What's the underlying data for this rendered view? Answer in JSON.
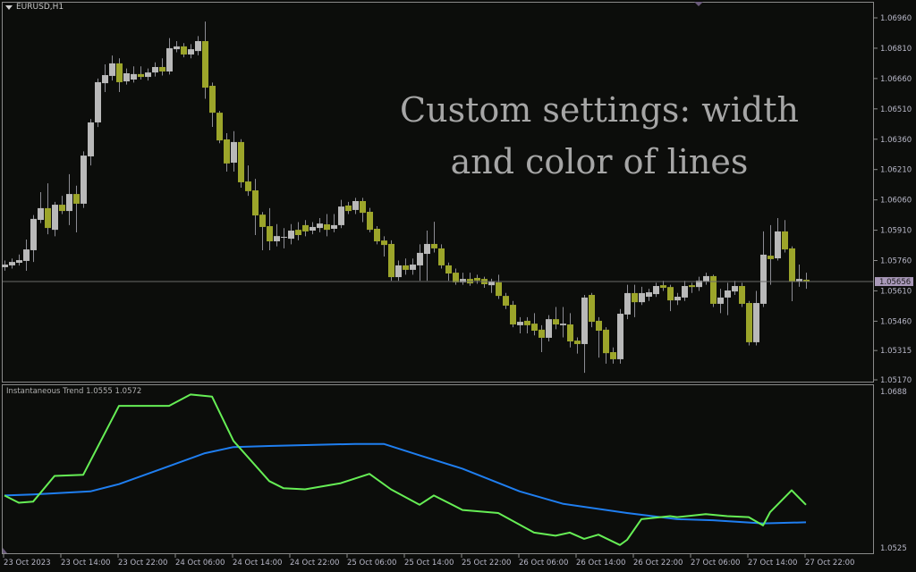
{
  "window": {
    "title": "EURUSD,H1"
  },
  "overlay_text": [
    "Custom settings: width",
    "and color of lines"
  ],
  "colors": {
    "background": "#0c0d0b",
    "bull_candle": "#b9b9b9",
    "bear_candle": "#9ca52a",
    "wick": "#8c8c94",
    "grid_border": "#8a8a8a",
    "green_line": "#66ee55",
    "blue_line": "#1f7ef0",
    "price_tag": "#a898b8"
  },
  "chart_data": [
    {
      "type": "candlestick",
      "symbol": "EURUSD",
      "timeframe": "H1",
      "first_bar": "23 Oct 2023 06:00",
      "columns": [
        "open",
        "high",
        "low",
        "close"
      ],
      "ohlc": [
        [
          1.05727,
          1.0576,
          1.0571,
          1.0574
        ],
        [
          1.05736,
          1.0577,
          1.0572,
          1.05753
        ],
        [
          1.05749,
          1.0579,
          1.05735,
          1.05762
        ],
        [
          1.05758,
          1.05864,
          1.05709,
          1.05815
        ],
        [
          1.05811,
          1.05985,
          1.05753,
          1.05966
        ],
        [
          1.05961,
          1.06098,
          1.05945,
          1.06019
        ],
        [
          1.06019,
          1.06142,
          1.0589,
          1.05921
        ],
        [
          1.05912,
          1.0605,
          1.0588,
          1.06036
        ],
        [
          1.06036,
          1.0608,
          1.0599,
          1.06005
        ],
        [
          1.06005,
          1.06187,
          1.05935,
          1.06089
        ],
        [
          1.06089,
          1.0613,
          1.05899,
          1.06041
        ],
        [
          1.06041,
          1.063,
          1.0602,
          1.06279
        ],
        [
          1.06275,
          1.0646,
          1.0623,
          1.06443
        ],
        [
          1.06443,
          1.0666,
          1.0642,
          1.06642
        ],
        [
          1.06637,
          1.0673,
          1.06593,
          1.06677
        ],
        [
          1.06673,
          1.06774,
          1.0665,
          1.06735
        ],
        [
          1.06735,
          1.0676,
          1.06593,
          1.06642
        ],
        [
          1.06646,
          1.0671,
          1.0663,
          1.06686
        ],
        [
          1.06655,
          1.0672,
          1.0664,
          1.06682
        ],
        [
          1.06682,
          1.0672,
          1.06655,
          1.06668
        ],
        [
          1.06668,
          1.0671,
          1.0665,
          1.0669
        ],
        [
          1.0669,
          1.0674,
          1.0667,
          1.06717
        ],
        [
          1.06717,
          1.0676,
          1.06675,
          1.06695
        ],
        [
          1.06695,
          1.0686,
          1.0668,
          1.0681
        ],
        [
          1.06805,
          1.06845,
          1.0679,
          1.06819
        ],
        [
          1.06819,
          1.06835,
          1.06765,
          1.06779
        ],
        [
          1.06779,
          1.0683,
          1.0676,
          1.06805
        ],
        [
          1.06796,
          1.0687,
          1.06775,
          1.06845
        ],
        [
          1.06845,
          1.06942,
          1.0656,
          1.06615
        ],
        [
          1.06624,
          1.0664,
          1.06421,
          1.06491
        ],
        [
          1.06491,
          1.065,
          1.0634,
          1.06354
        ],
        [
          1.06359,
          1.0639,
          1.062,
          1.0624
        ],
        [
          1.06244,
          1.064,
          1.062,
          1.06346
        ],
        [
          1.06346,
          1.0636,
          1.0612,
          1.06147
        ],
        [
          1.06151,
          1.0623,
          1.0608,
          1.06103
        ],
        [
          1.06107,
          1.06164,
          1.05886,
          1.05983
        ],
        [
          1.05987,
          1.06,
          1.05811,
          1.05926
        ],
        [
          1.0593,
          1.06019,
          1.05811,
          1.05855
        ],
        [
          1.05855,
          1.0594,
          1.0583,
          1.05881
        ],
        [
          1.05877,
          1.0592,
          1.0582,
          1.05877
        ],
        [
          1.05868,
          1.0594,
          1.0584,
          1.05908
        ],
        [
          1.05912,
          1.0595,
          1.0586,
          1.05886
        ],
        [
          1.05935,
          1.0596,
          1.0588,
          1.05904
        ],
        [
          1.05908,
          1.0595,
          1.0589,
          1.05926
        ],
        [
          1.05921,
          1.0597,
          1.059,
          1.05943
        ],
        [
          1.05939,
          1.0599,
          1.0588,
          1.05912
        ],
        [
          1.05917,
          1.0599,
          1.059,
          1.05935
        ],
        [
          1.05935,
          1.0606,
          1.0592,
          1.06027
        ],
        [
          1.06032,
          1.0605,
          1.0599,
          1.06005
        ],
        [
          1.0601,
          1.0607,
          1.0599,
          1.06054
        ],
        [
          1.06054,
          1.0607,
          1.0595,
          1.05996
        ],
        [
          1.06001,
          1.0602,
          1.059,
          1.05912
        ],
        [
          1.05917,
          1.0593,
          1.0584,
          1.05855
        ],
        [
          1.05859,
          1.0588,
          1.0578,
          1.05837
        ],
        [
          1.05842,
          1.0586,
          1.0566,
          1.05678
        ],
        [
          1.05678,
          1.0576,
          1.0566,
          1.05736
        ],
        [
          1.05736,
          1.0577,
          1.0569,
          1.05714
        ],
        [
          1.05714,
          1.0577,
          1.0569,
          1.0574
        ],
        [
          1.05736,
          1.0584,
          1.0566,
          1.05798
        ],
        [
          1.05793,
          1.05908,
          1.0566,
          1.05842
        ],
        [
          1.05842,
          1.05952,
          1.058,
          1.0582
        ],
        [
          1.0582,
          1.0584,
          1.0572,
          1.05736
        ],
        [
          1.05736,
          1.0575,
          1.0566,
          1.05696
        ],
        [
          1.057,
          1.0572,
          1.0564,
          1.05652
        ],
        [
          1.05652,
          1.057,
          1.0564,
          1.05669
        ],
        [
          1.05669,
          1.057,
          1.05635,
          1.05647
        ],
        [
          1.05674,
          1.0569,
          1.05645,
          1.05661
        ],
        [
          1.05669,
          1.0568,
          1.05625,
          1.05643
        ],
        [
          1.05638,
          1.0567,
          1.056,
          1.05656
        ],
        [
          1.05652,
          1.0569,
          1.0557,
          1.05585
        ],
        [
          1.05585,
          1.056,
          1.0552,
          1.05537
        ],
        [
          1.05541,
          1.0556,
          1.0543,
          1.05444
        ],
        [
          1.0544,
          1.0548,
          1.054,
          1.05457
        ],
        [
          1.05462,
          1.0548,
          1.054,
          1.0544
        ],
        [
          1.05448,
          1.055,
          1.0539,
          1.05413
        ],
        [
          1.05418,
          1.0544,
          1.05307,
          1.05378
        ],
        [
          1.05378,
          1.0549,
          1.0536,
          1.0547
        ],
        [
          1.0547,
          1.0553,
          1.0542,
          1.05444
        ],
        [
          1.0544,
          1.0553,
          1.0538,
          1.05448
        ],
        [
          1.05444,
          1.055,
          1.0533,
          1.0536
        ],
        [
          1.05364,
          1.0538,
          1.053,
          1.05347
        ],
        [
          1.05347,
          1.0559,
          1.05205,
          1.05577
        ],
        [
          1.0559,
          1.056,
          1.0543,
          1.05457
        ],
        [
          1.05462,
          1.0548,
          1.0528,
          1.05413
        ],
        [
          1.05418,
          1.0543,
          1.0525,
          1.05302
        ],
        [
          1.05307,
          1.0533,
          1.0525,
          1.05272
        ],
        [
          1.05272,
          1.0552,
          1.0525,
          1.05497
        ],
        [
          1.05493,
          1.0564,
          1.0547,
          1.05599
        ],
        [
          1.05599,
          1.0564,
          1.0548,
          1.05554
        ],
        [
          1.05554,
          1.0563,
          1.0554,
          1.05599
        ],
        [
          1.05581,
          1.0562,
          1.0556,
          1.05603
        ],
        [
          1.05594,
          1.0565,
          1.0558,
          1.05634
        ],
        [
          1.05638,
          1.0566,
          1.0561,
          1.05625
        ],
        [
          1.05629,
          1.0564,
          1.0551,
          1.05563
        ],
        [
          1.05563,
          1.056,
          1.0554,
          1.05581
        ],
        [
          1.05577,
          1.0566,
          1.0556,
          1.05634
        ],
        [
          1.05638,
          1.0565,
          1.056,
          1.05629
        ],
        [
          1.05629,
          1.0568,
          1.0561,
          1.05661
        ],
        [
          1.05656,
          1.057,
          1.0564,
          1.05683
        ],
        [
          1.05683,
          1.0569,
          1.0553,
          1.05546
        ],
        [
          1.05546,
          1.0562,
          1.055,
          1.05577
        ],
        [
          1.05577,
          1.0565,
          1.0549,
          1.05612
        ],
        [
          1.05607,
          1.0566,
          1.0559,
          1.05634
        ],
        [
          1.05634,
          1.0565,
          1.0553,
          1.05546
        ],
        [
          1.0555,
          1.0556,
          1.0534,
          1.05356
        ],
        [
          1.05356,
          1.0561,
          1.0534,
          1.0555
        ],
        [
          1.05546,
          1.05904,
          1.0553,
          1.05789
        ],
        [
          1.05784,
          1.05935,
          1.0564,
          1.05767
        ],
        [
          1.05771,
          1.0597,
          1.0576,
          1.05904
        ],
        [
          1.05904,
          1.0596,
          1.058,
          1.05815
        ],
        [
          1.0582,
          1.0583,
          1.05559,
          1.05656
        ],
        [
          1.05656,
          1.0574,
          1.0563,
          1.05669
        ],
        [
          1.05665,
          1.057,
          1.0562,
          1.05656
        ]
      ],
      "current_price": "1.05656",
      "ylim": [
        1.0517,
        1.0696
      ],
      "y_ticks": [
        "1.06960",
        "1.06810",
        "1.06660",
        "1.06510",
        "1.06360",
        "1.06210",
        "1.06060",
        "1.05910",
        "1.05760",
        "1.05610",
        "1.05460",
        "1.05315",
        "1.05170"
      ],
      "x_ticks": [
        "23 Oct 2023",
        "23 Oct 14:00",
        "23 Oct 22:00",
        "24 Oct 06:00",
        "24 Oct 14:00",
        "24 Oct 22:00",
        "25 Oct 06:00",
        "25 Oct 14:00",
        "25 Oct 22:00",
        "26 Oct 06:00",
        "26 Oct 14:00",
        "26 Oct 22:00",
        "27 Oct 06:00",
        "27 Oct 14:00",
        "27 Oct 22:00"
      ]
    },
    {
      "type": "line",
      "title": "Instantaneous Trend",
      "values_label": [
        "1.0555",
        "1.0572"
      ],
      "ylim": [
        1.0525,
        1.0688
      ],
      "y_ticks": [
        "1.0688",
        "1.0525"
      ],
      "series": [
        {
          "color": "#1f7ef0",
          "points": [
            [
              "23 06",
              1.0581
            ],
            [
              "23 10",
              1.0582
            ],
            [
              "23 18",
              1.0585
            ],
            [
              "23 22",
              1.0592
            ],
            [
              "24 04",
              1.0607
            ],
            [
              "24 10",
              1.0622
            ],
            [
              "24 14",
              1.0628
            ],
            [
              "24 19",
              1.0629
            ],
            [
              "25 07",
              1.0631
            ],
            [
              "25 11",
              1.0631
            ],
            [
              "25 16",
              1.062
            ],
            [
              "25 22",
              1.0607
            ],
            [
              "26 06",
              1.0585
            ],
            [
              "26 12",
              1.0573
            ],
            [
              "26 21",
              1.0564
            ],
            [
              "27 04",
              1.0558
            ],
            [
              "27 09",
              1.0557
            ],
            [
              "27 16",
              1.0554
            ],
            [
              "27 22",
              1.0555
            ]
          ]
        },
        {
          "color": "#66ee55",
          "points": [
            [
              "23 06",
              1.0581
            ],
            [
              "23 08",
              1.0574
            ],
            [
              "23 10",
              1.0575
            ],
            [
              "23 13",
              1.06
            ],
            [
              "23 17",
              1.0601
            ],
            [
              "23 22",
              1.0668
            ],
            [
              "24 05",
              1.0668
            ],
            [
              "24 08",
              1.0679
            ],
            [
              "24 11",
              1.0677
            ],
            [
              "24 14",
              1.0634
            ],
            [
              "24 19",
              1.0595
            ],
            [
              "24 21",
              1.0588
            ],
            [
              "25 00",
              1.0587
            ],
            [
              "25 05",
              1.0593
            ],
            [
              "25 09",
              1.0602
            ],
            [
              "25 12",
              1.0587
            ],
            [
              "25 16",
              1.0572
            ],
            [
              "25 18",
              1.0581
            ],
            [
              "25 22",
              1.0567
            ],
            [
              "26 03",
              1.0564
            ],
            [
              "26 08",
              1.0545
            ],
            [
              "26 11",
              1.0542
            ],
            [
              "26 13",
              1.0545
            ],
            [
              "26 15",
              1.0539
            ],
            [
              "26 17",
              1.0543
            ],
            [
              "26 20",
              1.0533
            ],
            [
              "26 21",
              1.0538
            ],
            [
              "26 23",
              1.0558
            ],
            [
              "27 03",
              1.0561
            ],
            [
              "27 04",
              1.056
            ],
            [
              "27 08",
              1.0563
            ],
            [
              "27 11",
              1.0561
            ],
            [
              "27 14",
              1.056
            ],
            [
              "27 16",
              1.0552
            ],
            [
              "27 17",
              1.0565
            ],
            [
              "27 20",
              1.0586
            ],
            [
              "27 22",
              1.0572
            ]
          ]
        }
      ]
    }
  ]
}
